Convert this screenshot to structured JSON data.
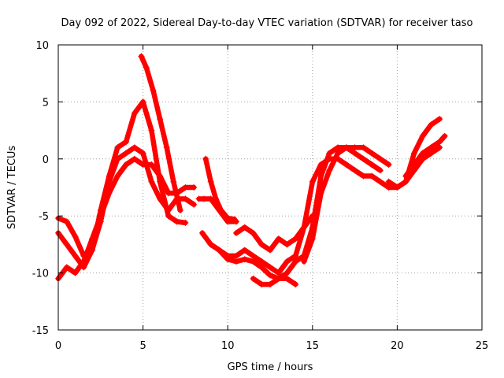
{
  "chart_data": {
    "type": "scatter",
    "title": "Day 092 of 2022, Sidereal Day-to-day VTEC variation (SDTVAR) for receiver taso",
    "xlabel": "GPS time / hours",
    "ylabel": "SDTVAR / TECUs",
    "xlim": [
      0,
      25
    ],
    "ylim": [
      -15,
      10
    ],
    "xticks": [
      0,
      5,
      10,
      15,
      20,
      25
    ],
    "yticks": [
      -15,
      -10,
      -5,
      0,
      5,
      10
    ],
    "xtick_labels": [
      "0",
      "5",
      "10",
      "15",
      "20",
      "25"
    ],
    "ytick_labels": [
      "-15",
      "-10",
      "-5",
      "0",
      "5",
      "10"
    ],
    "grid": true,
    "marker": "plus",
    "color": "#ff0000",
    "series": [
      {
        "name": "track-1",
        "x": [
          0,
          0.5,
          1.0,
          1.5,
          2.0,
          2.5,
          3.0,
          3.5,
          4.0,
          4.5,
          5.0,
          5.5,
          6.0,
          6.5,
          7.0,
          7.5
        ],
        "y": [
          -5.2,
          -5.5,
          -6.8,
          -8.5,
          -8.0,
          -4.5,
          -1.5,
          1.0,
          1.5,
          4.0,
          5.0,
          2.5,
          -2.0,
          -5.0,
          -5.5,
          -5.6
        ]
      },
      {
        "name": "track-2",
        "x": [
          0,
          0.5,
          1.0,
          1.5,
          2.0,
          2.5,
          3.0,
          3.5,
          4.0,
          4.5,
          5.0,
          5.5,
          6.0,
          6.5,
          7.0,
          7.5,
          8.0
        ],
        "y": [
          -6.5,
          -7.5,
          -8.5,
          -9.5,
          -8.0,
          -5.5,
          -2.0,
          0.0,
          0.5,
          1.0,
          0.5,
          -2.0,
          -3.5,
          -4.5,
          -3.5,
          -3.5,
          -4.0
        ]
      },
      {
        "name": "track-3",
        "x": [
          0,
          0.5,
          1.0,
          1.5,
          2.0,
          2.5,
          3.0,
          3.5,
          4.0,
          4.5,
          5.0,
          5.5,
          6.0,
          6.5,
          7.0,
          7.5,
          8.0
        ],
        "y": [
          -10.5,
          -9.5,
          -10.0,
          -9.0,
          -7.0,
          -5.0,
          -3.0,
          -1.5,
          -0.5,
          0.0,
          -0.5,
          -0.5,
          -1.5,
          -3.0,
          -3.0,
          -2.5,
          -2.5
        ]
      },
      {
        "name": "track-4",
        "x": [
          4.9,
          5.2,
          5.6,
          6.0,
          6.4,
          6.8,
          7.2
        ],
        "y": [
          9.0,
          8.0,
          6.0,
          3.5,
          1.0,
          -2.0,
          -4.5
        ]
      },
      {
        "name": "track-5",
        "x": [
          8.3,
          8.6,
          9.0,
          9.5,
          10.0,
          10.5
        ],
        "y": [
          -3.5,
          -3.5,
          -3.5,
          -4.5,
          -5.5,
          -5.5
        ]
      },
      {
        "name": "track-6",
        "x": [
          8.7,
          9.0,
          9.3,
          9.6,
          10.0,
          10.4
        ],
        "y": [
          0.0,
          -2.0,
          -3.5,
          -4.5,
          -5.2,
          -5.3
        ]
      },
      {
        "name": "track-7",
        "x": [
          8.5,
          9.0,
          9.5,
          10.0,
          10.5,
          11.0,
          11.5,
          12.0,
          12.5,
          13.0,
          13.5,
          14.0,
          14.5,
          15.0,
          15.5,
          16.0,
          16.5,
          17.0,
          17.5,
          18.0,
          18.5,
          19.0,
          19.5,
          20.0,
          20.5,
          21.0,
          21.5,
          22.0,
          22.5
        ],
        "y": [
          -6.5,
          -7.5,
          -8.0,
          -8.5,
          -8.5,
          -8.0,
          -8.5,
          -9.0,
          -9.5,
          -10.0,
          -9.0,
          -8.5,
          -6.0,
          -2.0,
          -0.5,
          0.0,
          0.0,
          -0.5,
          -1.0,
          -1.5,
          -1.5,
          -2.0,
          -2.5,
          -2.5,
          -2.0,
          -1.0,
          0.0,
          0.5,
          1.0
        ]
      },
      {
        "name": "track-8",
        "x": [
          9.0,
          9.5,
          10.0,
          10.5,
          11.0,
          11.5,
          12.0,
          12.5,
          13.0,
          13.5,
          14.0,
          14.5,
          15.0,
          15.5,
          16.0,
          16.5,
          17.0,
          17.5,
          18.0,
          18.5,
          19.0
        ],
        "y": [
          -7.5,
          -8.0,
          -8.8,
          -9.0,
          -8.8,
          -9.0,
          -9.5,
          -10.2,
          -10.5,
          -10.0,
          -9.0,
          -8.5,
          -6.0,
          -1.5,
          0.5,
          1.0,
          1.0,
          0.5,
          0.0,
          -0.5,
          -1.0
        ]
      },
      {
        "name": "track-9",
        "x": [
          10.5,
          11.0,
          11.5,
          12.0,
          12.5,
          13.0,
          13.5,
          14.0,
          14.5,
          15.0
        ],
        "y": [
          -6.5,
          -6.0,
          -6.5,
          -7.5,
          -8.0,
          -7.0,
          -7.5,
          -7.0,
          -6.0,
          -5.0
        ]
      },
      {
        "name": "track-10",
        "x": [
          11.5,
          12.0,
          12.5,
          13.0,
          13.5,
          14.0
        ],
        "y": [
          -10.5,
          -11.0,
          -11.0,
          -10.5,
          -10.5,
          -11.0
        ]
      },
      {
        "name": "track-11",
        "x": [
          14.5,
          15.0,
          15.5,
          16.0,
          16.5,
          17.0,
          17.5,
          18.0,
          18.5,
          19.0,
          19.5
        ],
        "y": [
          -9.0,
          -7.0,
          -3.0,
          -1.0,
          0.5,
          1.0,
          1.0,
          1.0,
          0.5,
          0.0,
          -0.5
        ]
      },
      {
        "name": "track-12",
        "x": [
          19.5,
          20.0,
          20.5,
          21.0,
          21.5,
          22.0,
          22.5
        ],
        "y": [
          -2.0,
          -2.5,
          -2.0,
          0.5,
          2.0,
          3.0,
          3.5
        ]
      },
      {
        "name": "track-13",
        "x": [
          20.5,
          21.0,
          21.5,
          22.0,
          22.5,
          22.8
        ],
        "y": [
          -1.5,
          -0.5,
          0.5,
          1.0,
          1.5,
          2.0
        ]
      }
    ]
  }
}
